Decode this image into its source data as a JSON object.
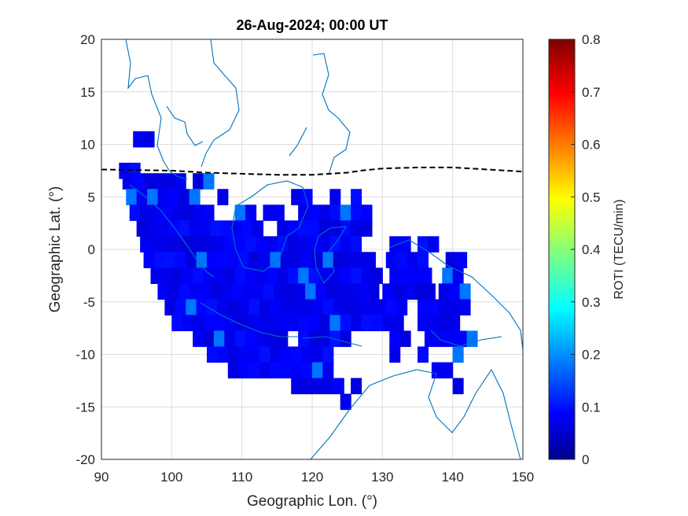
{
  "chart_data": {
    "type": "heatmap",
    "title": "26-Aug-2024; 00:00 UT",
    "xlabel": "Geographic Lon. (°)",
    "ylabel": "Geographic Lat. (°)",
    "xlim": [
      90,
      150
    ],
    "ylim": [
      -20,
      20
    ],
    "xticks": [
      "90",
      "100",
      "110",
      "120",
      "130",
      "140",
      "150"
    ],
    "yticks": [
      "20",
      "15",
      "10",
      "5",
      "0",
      "-5",
      "-10",
      "-15",
      "-20"
    ],
    "grid": true,
    "colorbar": {
      "label": "ROTI (TECU/min)",
      "colormap": "jet",
      "range": [
        0,
        0.8
      ],
      "ticks": [
        "0",
        "0.1",
        "0.2",
        "0.3",
        "0.4",
        "0.5",
        "0.6",
        "0.7",
        "0.8"
      ]
    },
    "cell_size_deg": [
      1.5,
      1.5
    ],
    "cell_value_typical": 0.08,
    "cell_value_max": 0.18,
    "equator_line": {
      "style": "dashed",
      "color": "#000000",
      "lon": [
        90,
        100,
        105,
        110,
        115,
        120,
        125,
        127,
        130,
        135,
        140,
        145,
        150
      ],
      "lat": [
        7.6,
        7.5,
        7.3,
        7.2,
        7.1,
        7.1,
        7.3,
        7.5,
        7.7,
        7.8,
        7.8,
        7.6,
        7.4
      ]
    },
    "coastline_color": "#0072BD",
    "coverage_rows": [
      {
        "lat": 10.5,
        "ranges": [
          [
            94.5,
            96.5
          ]
        ]
      },
      {
        "lat": 7.5,
        "ranges": [
          [
            92.5,
            95
          ]
        ]
      },
      {
        "lat": 6.5,
        "ranges": [
          [
            93,
            102
          ],
          [
            103,
            105.5
          ]
        ]
      },
      {
        "lat": 5.0,
        "ranges": [
          [
            93.5,
            104
          ],
          [
            106.5,
            108
          ],
          [
            117,
            119
          ],
          [
            122.5,
            124
          ],
          [
            125.5,
            127
          ]
        ]
      },
      {
        "lat": 3.5,
        "ranges": [
          [
            94,
            105
          ],
          [
            109,
            111
          ],
          [
            113,
            116
          ],
          [
            118,
            128
          ]
        ]
      },
      {
        "lat": 2.0,
        "ranges": [
          [
            95,
            113
          ],
          [
            115,
            128
          ]
        ]
      },
      {
        "lat": 0.5,
        "ranges": [
          [
            95.5,
            127
          ],
          [
            131,
            134
          ],
          [
            135,
            137
          ]
        ]
      },
      {
        "lat": -1.0,
        "ranges": [
          [
            96,
            128
          ],
          [
            130.5,
            136
          ],
          [
            139,
            142
          ]
        ]
      },
      {
        "lat": -2.5,
        "ranges": [
          [
            97,
            130
          ],
          [
            131,
            137
          ],
          [
            138.5,
            141
          ]
        ]
      },
      {
        "lat": -4.0,
        "ranges": [
          [
            98,
            129
          ],
          [
            130,
            137
          ],
          [
            138,
            142
          ]
        ]
      },
      {
        "lat": -5.5,
        "ranges": [
          [
            99,
            133
          ],
          [
            135,
            142
          ]
        ]
      },
      {
        "lat": -7.0,
        "ranges": [
          [
            100,
            129
          ],
          [
            130,
            133
          ],
          [
            135,
            141
          ]
        ]
      },
      {
        "lat": -8.5,
        "ranges": [
          [
            103,
            116
          ],
          [
            118,
            125
          ],
          [
            131,
            133
          ],
          [
            136,
            143.5
          ]
        ]
      },
      {
        "lat": -10.0,
        "ranges": [
          [
            105,
            123
          ],
          [
            131,
            132.5
          ],
          [
            135,
            136.5
          ],
          [
            140,
            141.5
          ]
        ]
      },
      {
        "lat": -11.5,
        "ranges": [
          [
            108,
            123
          ],
          [
            137,
            139
          ]
        ]
      },
      {
        "lat": -13.0,
        "ranges": [
          [
            117,
            124
          ],
          [
            125.5,
            127
          ],
          [
            140,
            141.5
          ]
        ]
      },
      {
        "lat": -14.5,
        "ranges": [
          [
            124,
            125.5
          ]
        ]
      }
    ]
  }
}
